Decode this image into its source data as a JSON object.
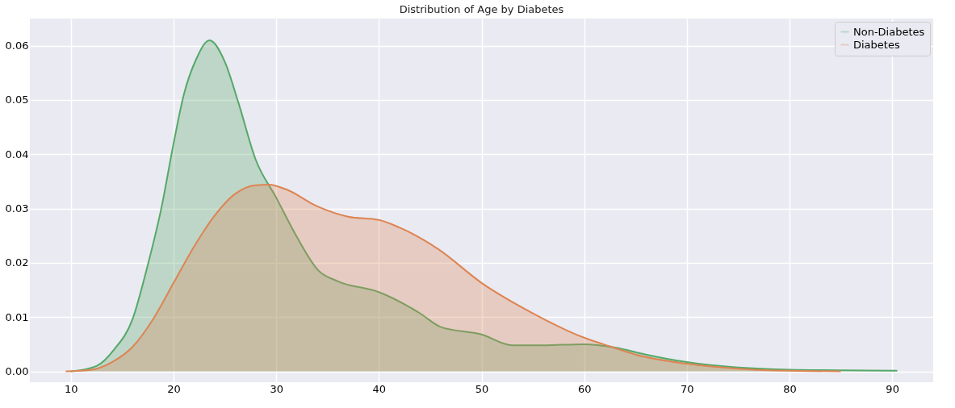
{
  "chart_data": {
    "type": "area",
    "title": "Distribution of Age by Diabetes",
    "series": [
      {
        "name": "Non-Diabetes",
        "color": "#55a868",
        "x": [
          10,
          12.5,
          14.2,
          16,
          17.5,
          18.8,
          20,
          21,
          22.2,
          23.5,
          25,
          26.3,
          28,
          30,
          32,
          34.1,
          36,
          40,
          44,
          46,
          50,
          53,
          56,
          60,
          63,
          66,
          70,
          75,
          80,
          85,
          90.5
        ],
        "values": [
          0,
          0.001,
          0.004,
          0.0096,
          0.0197,
          0.03,
          0.042,
          0.051,
          0.0575,
          0.061,
          0.057,
          0.0496,
          0.039,
          0.032,
          0.0248,
          0.0186,
          0.0166,
          0.0146,
          0.0107,
          0.0082,
          0.0068,
          0.0048,
          0.0048,
          0.005,
          0.0044,
          0.0031,
          0.0017,
          0.0007,
          0.0003,
          0.0002,
          0.0001
        ]
      },
      {
        "name": "Diabetes",
        "color": "#dd8452",
        "x": [
          9.5,
          12,
          14,
          16,
          18,
          20,
          22,
          24,
          26,
          28,
          29.3,
          31,
          34,
          37,
          40,
          42,
          45.8,
          50,
          55,
          60,
          62.5,
          65,
          70,
          75,
          80,
          85
        ],
        "values": [
          0,
          0.0003,
          0.0017,
          0.0045,
          0.0096,
          0.0163,
          0.023,
          0.0287,
          0.0327,
          0.0343,
          0.0344,
          0.0335,
          0.0304,
          0.0285,
          0.0279,
          0.0265,
          0.0225,
          0.0163,
          0.0107,
          0.0062,
          0.0046,
          0.0031,
          0.0014,
          0.0005,
          0.0001,
          0
        ]
      }
    ],
    "xlim": [
      6,
      94
    ],
    "xticks": [
      10,
      20,
      30,
      40,
      50,
      60,
      70,
      80,
      90
    ],
    "ylim": [
      -0.002,
      0.065
    ],
    "yticks": [
      {
        "value": 0,
        "label": "0.00"
      },
      0.01,
      0.02,
      0.03,
      0.04,
      0.05,
      0.06
    ],
    "grid": true,
    "legend": "top right"
  }
}
